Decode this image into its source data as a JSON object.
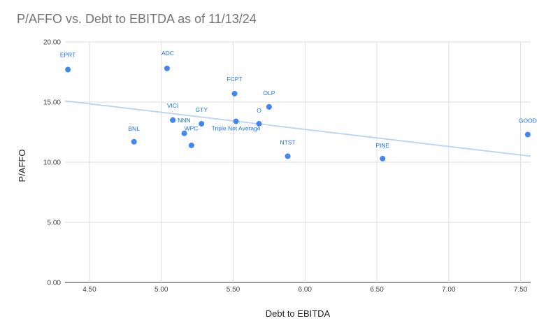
{
  "chart_data": {
    "type": "scatter",
    "title": "P/AFFO vs. Debt to EBITDA as of 11/13/24",
    "xlabel": "Debt to EBITDA",
    "ylabel": "P/AFFO",
    "xlim": [
      4.33,
      7.57
    ],
    "ylim": [
      0,
      20
    ],
    "x_ticks": [
      "4.50",
      "5.00",
      "5.50",
      "6.00",
      "6.50",
      "7.00",
      "7.50"
    ],
    "y_ticks": [
      "0.00",
      "5.00",
      "10.00",
      "15.00",
      "20.00"
    ],
    "grid": true,
    "point_color": "#4285f4",
    "label_color": "#1a73e8",
    "trendline_color": "#b9d3f7",
    "trendline": {
      "x": [
        4.33,
        7.57
      ],
      "y": [
        15.1,
        10.5
      ]
    },
    "points": [
      {
        "label": "EPRT",
        "x": 4.35,
        "y": 17.7
      },
      {
        "label": "ADC",
        "x": 5.04,
        "y": 17.8
      },
      {
        "label": "BNL",
        "x": 4.81,
        "y": 11.7
      },
      {
        "label": "VICI",
        "x": 5.08,
        "y": 13.5
      },
      {
        "label": "NNN",
        "x": 5.08,
        "y": 13.5
      },
      {
        "label": "WPC",
        "x": 5.16,
        "y": 12.4
      },
      {
        "label": "",
        "x": 5.21,
        "y": 11.4
      },
      {
        "label": "GTY",
        "x": 5.28,
        "y": 13.2
      },
      {
        "label": "FCPT",
        "x": 5.51,
        "y": 15.7
      },
      {
        "label": "Triple Net Average",
        "x": 5.52,
        "y": 13.4
      },
      {
        "label": "O",
        "x": 5.68,
        "y": 13.2
      },
      {
        "label": "OLP",
        "x": 5.75,
        "y": 14.6
      },
      {
        "label": "NTST",
        "x": 5.88,
        "y": 10.5
      },
      {
        "label": "PINE",
        "x": 6.54,
        "y": 10.3
      },
      {
        "label": "GOOD",
        "x": 7.55,
        "y": 12.3
      }
    ]
  }
}
